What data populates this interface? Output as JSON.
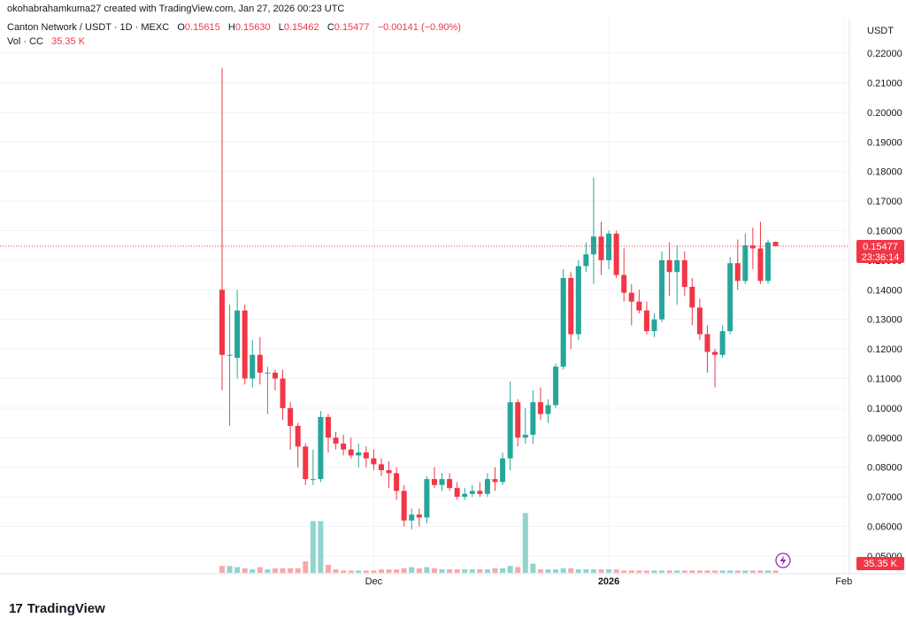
{
  "header": {
    "author_line": "okohabrahamkuma27 created with TradingView.com, Jan 27, 2026 00:23 UTC",
    "symbol": "Canton Network / USDT · 1D · MEXC",
    "o_label": "O",
    "o_value": "0.15615",
    "h_label": "H",
    "h_value": "0.15630",
    "l_label": "L",
    "l_value": "0.15462",
    "c_label": "C",
    "c_value": "0.15477",
    "change": "−0.00141 (−0.90%)",
    "vol_label": "Vol · CC",
    "vol_value": "35.35 K"
  },
  "brand": {
    "name": "TradingView",
    "logo_text": "17"
  },
  "colors": {
    "up": "#26a69a",
    "down": "#f23645",
    "up_vol": "#8fd5ce",
    "down_vol": "#f7a9a9",
    "grid": "#f0f3fa"
  },
  "icons": {
    "flash": "lightning-icon"
  },
  "chart_data": {
    "type": "candlestick",
    "title": "Canton Network / USDT · 1D · MEXC",
    "y_unit": "USDT",
    "ylim": [
      0.044,
      0.226
    ],
    "y_ticks": [
      "0.22000",
      "0.21000",
      "0.20000",
      "0.19000",
      "0.18000",
      "0.17000",
      "0.16000",
      "0.15000",
      "0.14000",
      "0.13000",
      "0.12000",
      "0.11000",
      "0.10000",
      "0.09000",
      "0.08000",
      "0.07000",
      "0.06000",
      "0.05000"
    ],
    "x_ticks": [
      {
        "label": "Dec",
        "index": 20
      },
      {
        "label": "2026",
        "index": 51
      },
      {
        "label": "Feb",
        "index": 82
      }
    ],
    "grid": true,
    "last_price_label": "0.15477",
    "countdown_label": "23:36:14",
    "volume_label": "35.35 K",
    "candles": [
      [
        0.14,
        0.215,
        0.106,
        0.118,
        0.06
      ],
      [
        0.118,
        0.135,
        0.094,
        0.118,
        0.06
      ],
      [
        0.117,
        0.14,
        0.11,
        0.133,
        0.05
      ],
      [
        0.133,
        0.135,
        0.108,
        0.11,
        0.04
      ],
      [
        0.11,
        0.123,
        0.107,
        0.118,
        0.03
      ],
      [
        0.118,
        0.124,
        0.108,
        0.112,
        0.05
      ],
      [
        0.112,
        0.114,
        0.098,
        0.112,
        0.03
      ],
      [
        0.112,
        0.113,
        0.106,
        0.11,
        0.04
      ],
      [
        0.11,
        0.113,
        0.096,
        0.1,
        0.04
      ],
      [
        0.1,
        0.102,
        0.086,
        0.094,
        0.04
      ],
      [
        0.094,
        0.095,
        0.08,
        0.087,
        0.04
      ],
      [
        0.087,
        0.088,
        0.074,
        0.076,
        0.1
      ],
      [
        0.076,
        0.086,
        0.074,
        0.076,
        0.45
      ],
      [
        0.076,
        0.099,
        0.075,
        0.097,
        0.45
      ],
      [
        0.097,
        0.098,
        0.085,
        0.09,
        0.07
      ],
      [
        0.09,
        0.092,
        0.086,
        0.088,
        0.03
      ],
      [
        0.088,
        0.091,
        0.084,
        0.086,
        0.02
      ],
      [
        0.086,
        0.09,
        0.083,
        0.084,
        0.02
      ],
      [
        0.084,
        0.088,
        0.08,
        0.085,
        0.02
      ],
      [
        0.085,
        0.087,
        0.08,
        0.083,
        0.02
      ],
      [
        0.083,
        0.086,
        0.079,
        0.081,
        0.02
      ],
      [
        0.081,
        0.083,
        0.077,
        0.079,
        0.03
      ],
      [
        0.079,
        0.082,
        0.073,
        0.078,
        0.03
      ],
      [
        0.078,
        0.08,
        0.069,
        0.072,
        0.03
      ],
      [
        0.072,
        0.074,
        0.06,
        0.062,
        0.04
      ],
      [
        0.062,
        0.066,
        0.059,
        0.064,
        0.05
      ],
      [
        0.064,
        0.066,
        0.06,
        0.063,
        0.04
      ],
      [
        0.063,
        0.077,
        0.061,
        0.076,
        0.05
      ],
      [
        0.076,
        0.08,
        0.073,
        0.074,
        0.04
      ],
      [
        0.074,
        0.078,
        0.072,
        0.076,
        0.03
      ],
      [
        0.076,
        0.078,
        0.072,
        0.073,
        0.03
      ],
      [
        0.073,
        0.075,
        0.069,
        0.07,
        0.03
      ],
      [
        0.07,
        0.073,
        0.069,
        0.071,
        0.03
      ],
      [
        0.071,
        0.074,
        0.07,
        0.072,
        0.03
      ],
      [
        0.072,
        0.075,
        0.07,
        0.071,
        0.03
      ],
      [
        0.071,
        0.078,
        0.07,
        0.076,
        0.03
      ],
      [
        0.076,
        0.08,
        0.072,
        0.075,
        0.04
      ],
      [
        0.075,
        0.085,
        0.074,
        0.083,
        0.04
      ],
      [
        0.083,
        0.109,
        0.079,
        0.102,
        0.06
      ],
      [
        0.102,
        0.103,
        0.087,
        0.09,
        0.05
      ],
      [
        0.09,
        0.1,
        0.088,
        0.091,
        0.52
      ],
      [
        0.091,
        0.106,
        0.088,
        0.102,
        0.08
      ],
      [
        0.102,
        0.107,
        0.096,
        0.098,
        0.03
      ],
      [
        0.098,
        0.103,
        0.095,
        0.101,
        0.03
      ],
      [
        0.101,
        0.115,
        0.1,
        0.114,
        0.03
      ],
      [
        0.114,
        0.147,
        0.113,
        0.144,
        0.04
      ],
      [
        0.144,
        0.146,
        0.12,
        0.125,
        0.04
      ],
      [
        0.125,
        0.15,
        0.123,
        0.148,
        0.03
      ],
      [
        0.148,
        0.156,
        0.146,
        0.152,
        0.03
      ],
      [
        0.152,
        0.178,
        0.142,
        0.158,
        0.03
      ],
      [
        0.158,
        0.163,
        0.145,
        0.15,
        0.03
      ],
      [
        0.15,
        0.16,
        0.147,
        0.159,
        0.03
      ],
      [
        0.159,
        0.16,
        0.144,
        0.145,
        0.03
      ],
      [
        0.145,
        0.154,
        0.136,
        0.139,
        0.02
      ],
      [
        0.139,
        0.142,
        0.128,
        0.136,
        0.02
      ],
      [
        0.136,
        0.14,
        0.132,
        0.133,
        0.02
      ],
      [
        0.133,
        0.136,
        0.125,
        0.126,
        0.02
      ],
      [
        0.126,
        0.132,
        0.124,
        0.13,
        0.02
      ],
      [
        0.13,
        0.153,
        0.129,
        0.15,
        0.02
      ],
      [
        0.15,
        0.156,
        0.138,
        0.146,
        0.02
      ],
      [
        0.146,
        0.155,
        0.135,
        0.15,
        0.02
      ],
      [
        0.15,
        0.153,
        0.138,
        0.141,
        0.02
      ],
      [
        0.141,
        0.144,
        0.128,
        0.134,
        0.02
      ],
      [
        0.134,
        0.137,
        0.123,
        0.125,
        0.02
      ],
      [
        0.125,
        0.128,
        0.112,
        0.119,
        0.02
      ],
      [
        0.119,
        0.12,
        0.107,
        0.118,
        0.02
      ],
      [
        0.118,
        0.128,
        0.117,
        0.126,
        0.02
      ],
      [
        0.126,
        0.151,
        0.125,
        0.149,
        0.02
      ],
      [
        0.149,
        0.157,
        0.14,
        0.143,
        0.02
      ],
      [
        0.143,
        0.159,
        0.142,
        0.155,
        0.02
      ],
      [
        0.155,
        0.161,
        0.147,
        0.154,
        0.02
      ],
      [
        0.154,
        0.163,
        0.142,
        0.143,
        0.02
      ],
      [
        0.143,
        0.157,
        0.142,
        0.156,
        0.02
      ],
      [
        0.1562,
        0.1563,
        0.1546,
        0.1548,
        0.02
      ]
    ]
  }
}
